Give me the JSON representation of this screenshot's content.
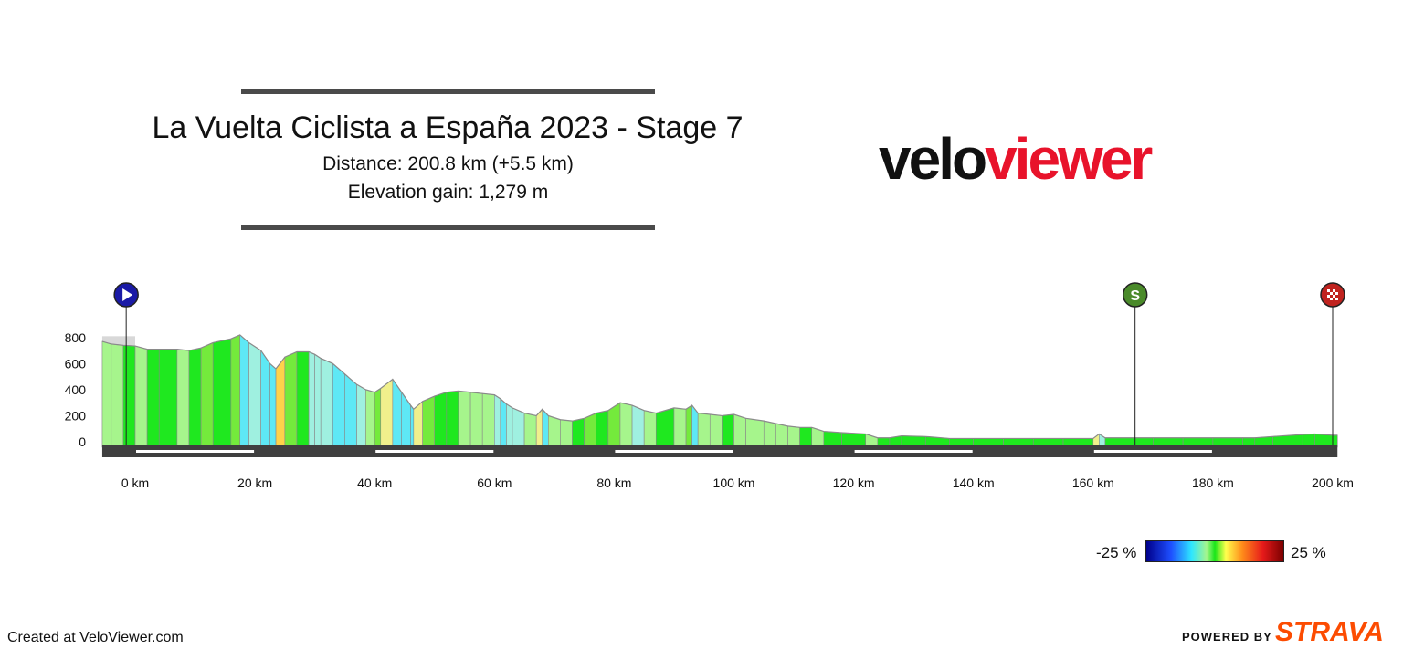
{
  "header": {
    "title": "La Vuelta Ciclista a España 2023 - Stage 7",
    "distance": "Distance: 200.8 km (+5.5 km)",
    "elevation_gain": "Elevation gain: 1,279 m"
  },
  "logo": {
    "part1": "velo",
    "part2": "viewer"
  },
  "gradient_scale": {
    "min_label": "-25 %",
    "max_label": "25 %"
  },
  "footer": {
    "created": "Created at VeloViewer.com",
    "powered": "POWERED BY",
    "strava": "STRAVA"
  },
  "markers": [
    {
      "name": "start",
      "icon": "play-icon",
      "km": -1.5,
      "color": "#1a1aa6"
    },
    {
      "name": "sprint",
      "icon": "sprint-s-icon",
      "label": "S",
      "km": 167.0,
      "color": "#4a8a2a"
    },
    {
      "name": "finish",
      "icon": "checkered-flag-icon",
      "km": 200.0,
      "color": "#c0231f"
    }
  ],
  "chart_data": {
    "type": "area",
    "title": "",
    "xlabel": "",
    "ylabel": "",
    "x_unit": "km",
    "y_unit": "m",
    "xlim": [
      -6,
      200.8
    ],
    "ylim": [
      -30,
      830
    ],
    "x_ticks": [
      0,
      20,
      40,
      60,
      80,
      100,
      120,
      140,
      160,
      180,
      200
    ],
    "x_tick_labels": [
      "0 km",
      "20 km",
      "40 km",
      "60 km",
      "80 km",
      "100 km",
      "120 km",
      "140 km",
      "160 km",
      "180 km",
      "200 km"
    ],
    "y_ticks": [
      0,
      200,
      400,
      600,
      800
    ],
    "y_tick_labels": [
      "0",
      "200",
      "400",
      "600",
      "800"
    ],
    "neutral_start_km": -5.5,
    "neutral_elevation": 810,
    "profile": [
      {
        "x": -5.5,
        "y": 770
      },
      {
        "x": -4,
        "y": 750
      },
      {
        "x": -2,
        "y": 740
      },
      {
        "x": 0,
        "y": 735
      },
      {
        "x": 2,
        "y": 710
      },
      {
        "x": 4,
        "y": 710
      },
      {
        "x": 7,
        "y": 710
      },
      {
        "x": 9,
        "y": 700
      },
      {
        "x": 11,
        "y": 720
      },
      {
        "x": 13,
        "y": 760
      },
      {
        "x": 16,
        "y": 790
      },
      {
        "x": 17.5,
        "y": 820
      },
      {
        "x": 19,
        "y": 760
      },
      {
        "x": 21,
        "y": 700
      },
      {
        "x": 22.5,
        "y": 600
      },
      {
        "x": 23.5,
        "y": 560
      },
      {
        "x": 25,
        "y": 650
      },
      {
        "x": 27,
        "y": 690
      },
      {
        "x": 29,
        "y": 690
      },
      {
        "x": 30,
        "y": 670
      },
      {
        "x": 31,
        "y": 640
      },
      {
        "x": 33,
        "y": 600
      },
      {
        "x": 35,
        "y": 520
      },
      {
        "x": 37,
        "y": 440
      },
      {
        "x": 38.5,
        "y": 400
      },
      {
        "x": 40,
        "y": 380
      },
      {
        "x": 41,
        "y": 410
      },
      {
        "x": 43,
        "y": 480
      },
      {
        "x": 44.5,
        "y": 380
      },
      {
        "x": 46,
        "y": 280
      },
      {
        "x": 46.5,
        "y": 250
      },
      {
        "x": 48,
        "y": 310
      },
      {
        "x": 50,
        "y": 350
      },
      {
        "x": 52,
        "y": 380
      },
      {
        "x": 54,
        "y": 390
      },
      {
        "x": 56,
        "y": 380
      },
      {
        "x": 58,
        "y": 370
      },
      {
        "x": 60,
        "y": 360
      },
      {
        "x": 61,
        "y": 330
      },
      {
        "x": 62,
        "y": 290
      },
      {
        "x": 63,
        "y": 260
      },
      {
        "x": 65,
        "y": 220
      },
      {
        "x": 67,
        "y": 200
      },
      {
        "x": 68,
        "y": 250
      },
      {
        "x": 69,
        "y": 200
      },
      {
        "x": 71,
        "y": 170
      },
      {
        "x": 73,
        "y": 160
      },
      {
        "x": 75,
        "y": 180
      },
      {
        "x": 77,
        "y": 220
      },
      {
        "x": 79,
        "y": 240
      },
      {
        "x": 81,
        "y": 300
      },
      {
        "x": 83,
        "y": 280
      },
      {
        "x": 85,
        "y": 240
      },
      {
        "x": 87,
        "y": 220
      },
      {
        "x": 90,
        "y": 260
      },
      {
        "x": 92,
        "y": 250
      },
      {
        "x": 93,
        "y": 280
      },
      {
        "x": 94,
        "y": 220
      },
      {
        "x": 96,
        "y": 210
      },
      {
        "x": 98,
        "y": 200
      },
      {
        "x": 100,
        "y": 210
      },
      {
        "x": 102,
        "y": 180
      },
      {
        "x": 105,
        "y": 160
      },
      {
        "x": 107,
        "y": 140
      },
      {
        "x": 109,
        "y": 120
      },
      {
        "x": 111,
        "y": 110
      },
      {
        "x": 113,
        "y": 110
      },
      {
        "x": 115,
        "y": 80
      },
      {
        "x": 118,
        "y": 70
      },
      {
        "x": 122,
        "y": 60
      },
      {
        "x": 124,
        "y": 30
      },
      {
        "x": 126,
        "y": 30
      },
      {
        "x": 128,
        "y": 45
      },
      {
        "x": 132,
        "y": 40
      },
      {
        "x": 136,
        "y": 25
      },
      {
        "x": 140,
        "y": 25
      },
      {
        "x": 145,
        "y": 25
      },
      {
        "x": 150,
        "y": 25
      },
      {
        "x": 155,
        "y": 25
      },
      {
        "x": 160,
        "y": 25
      },
      {
        "x": 161,
        "y": 60
      },
      {
        "x": 162,
        "y": 30
      },
      {
        "x": 165,
        "y": 30
      },
      {
        "x": 170,
        "y": 30
      },
      {
        "x": 175,
        "y": 30
      },
      {
        "x": 180,
        "y": 30
      },
      {
        "x": 185,
        "y": 30
      },
      {
        "x": 187,
        "y": 30
      },
      {
        "x": 190,
        "y": 40
      },
      {
        "x": 195,
        "y": 55
      },
      {
        "x": 197,
        "y": 60
      },
      {
        "x": 200,
        "y": 50
      },
      {
        "x": 200.8,
        "y": 50
      }
    ]
  }
}
